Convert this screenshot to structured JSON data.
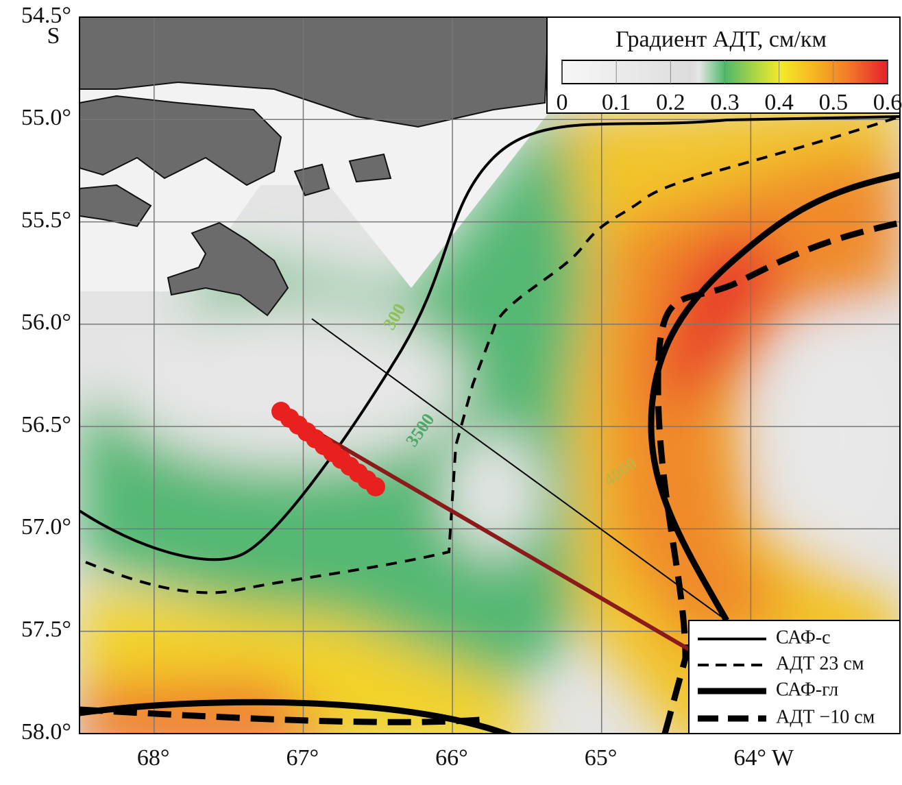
{
  "map": {
    "xaxis": {
      "lim": [
        68.5,
        63.0
      ],
      "ticks": [
        {
          "value": 68,
          "label": "68°"
        },
        {
          "value": 67,
          "label": "67°"
        },
        {
          "value": 66,
          "label": "66°"
        },
        {
          "value": 65,
          "label": "65°"
        },
        {
          "value": 64,
          "label": "64° W"
        }
      ]
    },
    "yaxis": {
      "lim": [
        54.5,
        58.0
      ],
      "hemisphere": "S",
      "ticks": [
        {
          "value": 54.5,
          "label": "54.5°"
        },
        {
          "value": 55.0,
          "label": "55.0°"
        },
        {
          "value": 55.5,
          "label": "55.5°"
        },
        {
          "value": 56.0,
          "label": "56.0°"
        },
        {
          "value": 56.5,
          "label": "56.5°"
        },
        {
          "value": 57.0,
          "label": "57.0°"
        },
        {
          "value": 57.5,
          "label": "57.5°"
        },
        {
          "value": 58.0,
          "label": "58.0°"
        }
      ]
    },
    "colorbar": {
      "title": "Градиент АДТ, см/км",
      "lim": [
        0,
        0.6
      ],
      "ticks": [
        0,
        0.1,
        0.2,
        0.3,
        0.4,
        0.5,
        0.6
      ]
    },
    "contour_labels": [
      "300",
      "3500",
      "4000"
    ],
    "legend": [
      "САФ-с",
      "АДТ 23 см",
      "САФ-гл",
      "АДТ −10 см"
    ]
  }
}
